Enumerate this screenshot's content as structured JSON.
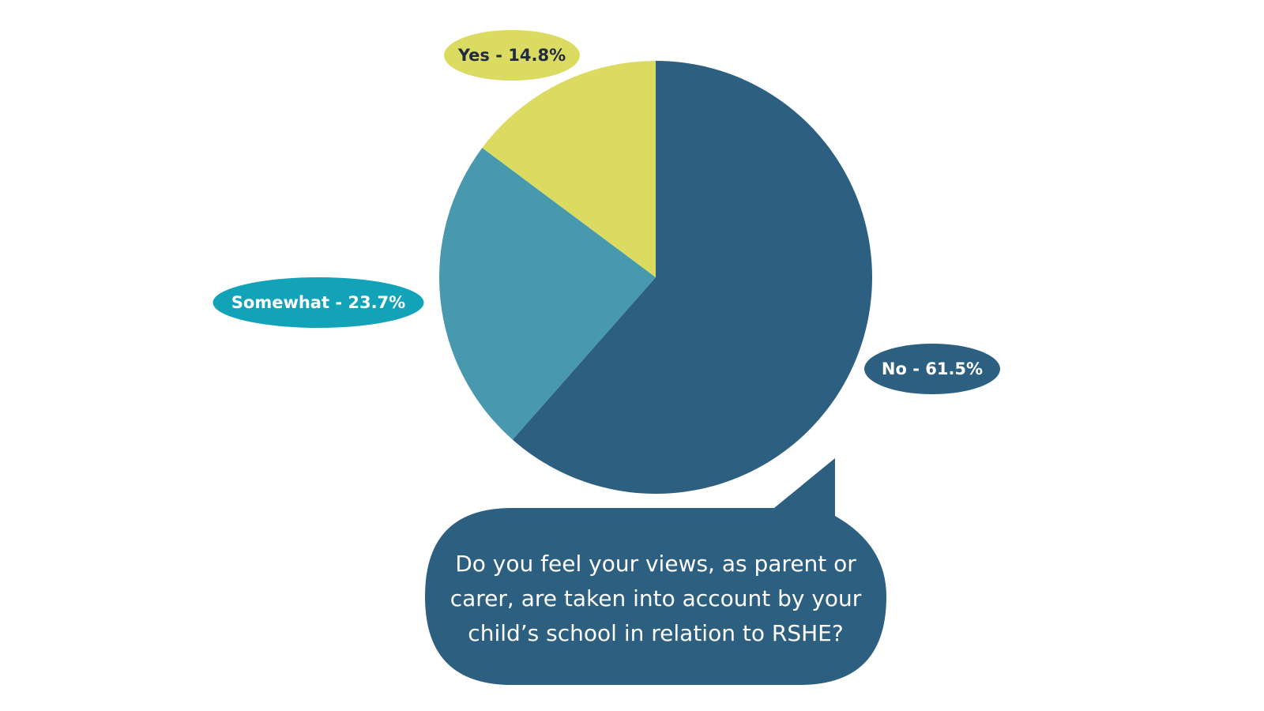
{
  "chart_data": {
    "type": "pie",
    "title": "Do you feel your views, as parent or carer, are taken into account by your child’s school in relation to RSHE?",
    "values": [
      61.5,
      23.7,
      14.8
    ],
    "value_labels": [
      "No - 61.5%",
      "Somewhat - 23.7%",
      "Yes - 14.8%"
    ],
    "colors": [
      "#2d5f80",
      "#4899ae",
      "#dbdb62"
    ],
    "label_colors": [
      "#2d5f80",
      "#12a3b8",
      "#dbdb62"
    ],
    "label_text_colors": [
      "#ffffff",
      "#ffffff",
      "#1f2a44"
    ]
  }
}
